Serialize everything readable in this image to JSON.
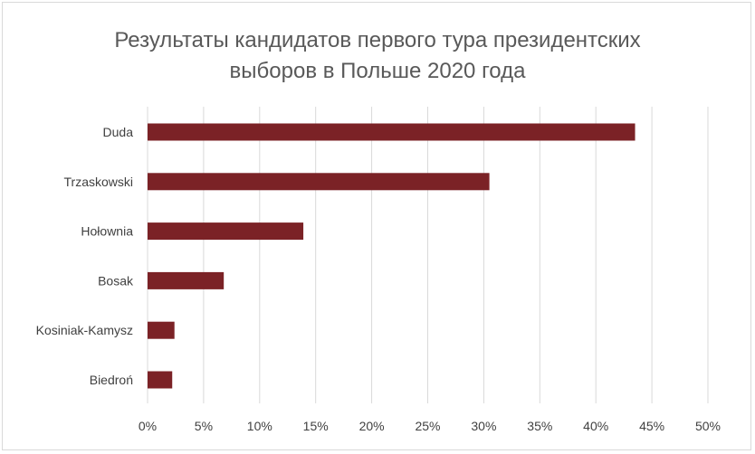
{
  "chart_data": {
    "type": "bar",
    "orientation": "horizontal",
    "title_lines": [
      "Результаты кандидатов первого тура президентских",
      "выборов в Польше 2020 года"
    ],
    "categories": [
      "Duda",
      "Trzaskowski",
      "Hołownia",
      "Bosak",
      "Kosiniak-Kamysz",
      "Biedroń"
    ],
    "values": [
      43.5,
      30.5,
      13.9,
      6.8,
      2.4,
      2.2
    ],
    "unit": "%",
    "xlim": [
      0,
      50
    ],
    "xticks": [
      "0%",
      "5%",
      "10%",
      "15%",
      "20%",
      "25%",
      "30%",
      "35%",
      "40%",
      "45%",
      "50%"
    ],
    "grid": "vertical",
    "bar_color": "#7b2226",
    "grid_color": "#d9d9d9",
    "text_color": "#595959"
  }
}
